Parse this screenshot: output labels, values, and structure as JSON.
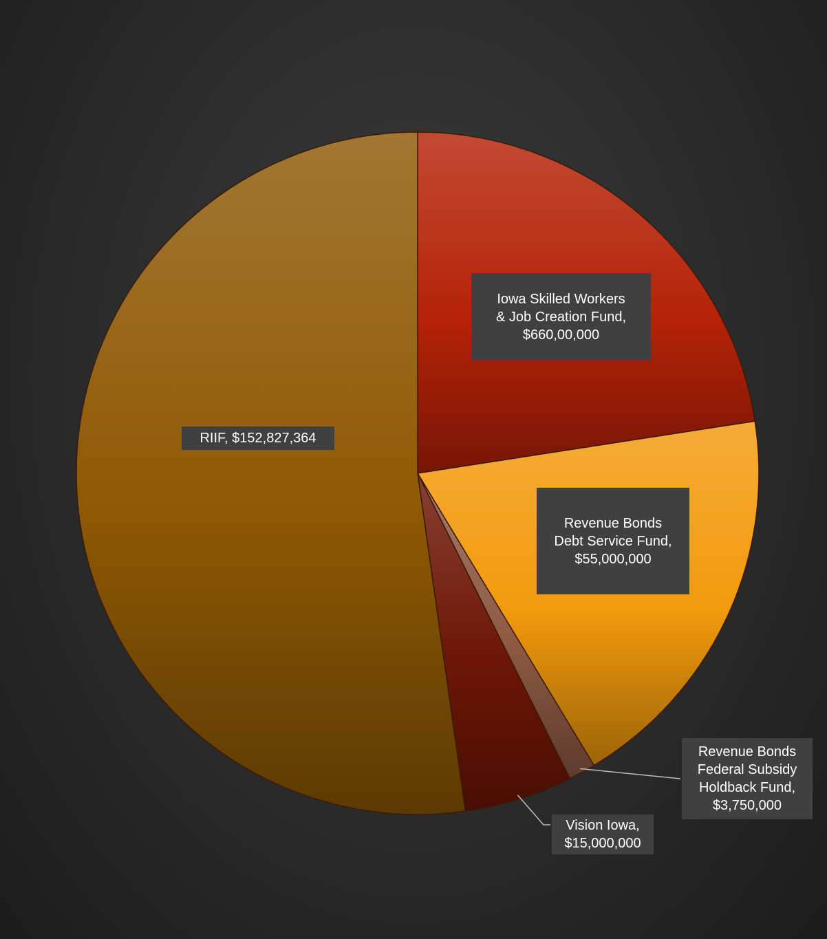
{
  "chart_data": {
    "type": "pie",
    "title": "",
    "slices": [
      {
        "name": "Iowa Skilled Workers & Job Creation Fund",
        "value": 66000000,
        "label_lines": [
          "Iowa Skilled Workers",
          "& Job Creation Fund,",
          "$660,00,000"
        ],
        "color": "#b52208"
      },
      {
        "name": "Revenue Bonds Debt Service Fund",
        "value": 55000000,
        "label_lines": [
          "Revenue Bonds",
          "Debt Service Fund,",
          "$55,000,000"
        ],
        "color": "#f29a0c"
      },
      {
        "name": "Revenue Bonds Federal Subsidy Holdback Fund",
        "value": 3750000,
        "label_lines": [
          "Revenue Bonds",
          "Federal Subsidy",
          "Holdback Fund,",
          "$3,750,000"
        ],
        "color": "#8f5a44"
      },
      {
        "name": "Vision Iowa",
        "value": 15000000,
        "label_lines": [
          "Vision Iowa,",
          "$15,000,000"
        ],
        "color": "#6e1606"
      },
      {
        "name": "RIIF",
        "value": 152827364,
        "label_lines": [
          "RIIF, $152,827,364"
        ],
        "color": "#8f5905"
      }
    ],
    "start_angle_deg": 0,
    "direction": "clockwise",
    "legend": "none",
    "data_labels": "category-name-and-value"
  }
}
